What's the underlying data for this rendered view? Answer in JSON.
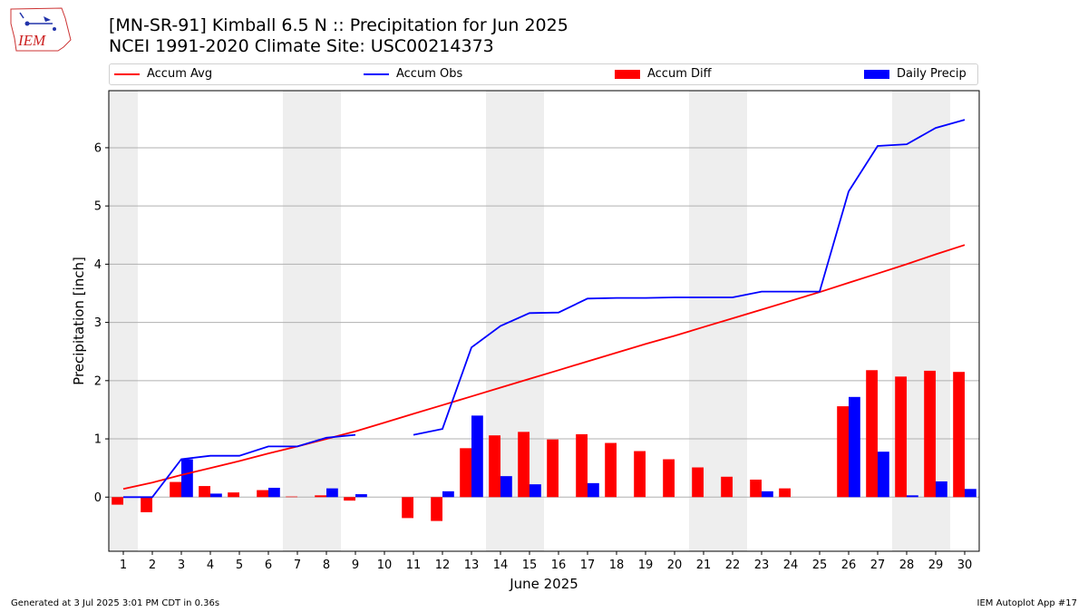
{
  "logo": {
    "text": "IEM"
  },
  "title": {
    "line1": "[MN-SR-91] Kimball 6.5 N :: Precipitation for Jun 2025",
    "line2": "NCEI 1991-2020 Climate Site: USC00214373"
  },
  "legend": {
    "accum_avg": "Accum Avg",
    "accum_obs": "Accum Obs",
    "accum_diff": "Accum Diff",
    "daily_precip": "Daily Precip"
  },
  "colors": {
    "red": "#ff0000",
    "blue": "#0000ff",
    "shade": "#eeeeee",
    "grid": "#b0b0b0"
  },
  "footer": {
    "generated": "Generated at 3 Jul 2025 3:01 PM CDT in 0.36s",
    "app": "IEM Autoplot App #17"
  },
  "chart_data": {
    "type": "bar",
    "xlabel": "June 2025",
    "ylabel": "Precipitation [inch]",
    "ylim": [
      -0.93,
      6.98
    ],
    "yticks": [
      0,
      1,
      2,
      3,
      4,
      5,
      6
    ],
    "xlim": [
      0.5,
      30.5
    ],
    "days": [
      1,
      2,
      3,
      4,
      5,
      6,
      7,
      8,
      9,
      10,
      11,
      12,
      13,
      14,
      15,
      16,
      17,
      18,
      19,
      20,
      21,
      22,
      23,
      24,
      25,
      26,
      27,
      28,
      29,
      30
    ],
    "shaded_days": [
      [
        1,
        1
      ],
      [
        7,
        8
      ],
      [
        14,
        15
      ],
      [
        21,
        22
      ],
      [
        28,
        29
      ]
    ],
    "grid": true,
    "legend_position": "top",
    "series": [
      {
        "name": "Accum Avg",
        "kind": "line",
        "color": "#ff0000",
        "values": [
          0.14,
          0.25,
          0.38,
          0.5,
          0.62,
          0.75,
          0.87,
          1.0,
          1.13,
          1.28,
          1.43,
          1.58,
          1.73,
          1.88,
          2.03,
          2.18,
          2.33,
          2.48,
          2.63,
          2.77,
          2.92,
          3.07,
          3.22,
          3.37,
          3.52,
          3.68,
          3.84,
          4.0,
          4.17,
          4.33
        ]
      },
      {
        "name": "Accum Obs",
        "kind": "line",
        "color": "#0000ff",
        "values": [
          0.0,
          0.0,
          0.65,
          0.71,
          0.71,
          0.87,
          0.87,
          1.02,
          1.07,
          null,
          1.07,
          1.17,
          2.57,
          2.94,
          3.16,
          3.17,
          3.41,
          3.42,
          3.42,
          3.43,
          3.43,
          3.43,
          3.53,
          3.53,
          3.53,
          5.25,
          6.03,
          6.06,
          6.34,
          6.48
        ]
      },
      {
        "name": "Accum Diff",
        "kind": "bar",
        "color": "#ff0000",
        "values": [
          -0.13,
          -0.26,
          0.26,
          0.19,
          0.08,
          0.12,
          0.01,
          0.03,
          -0.06,
          null,
          -0.36,
          -0.41,
          0.84,
          1.06,
          1.12,
          0.99,
          1.08,
          0.93,
          0.79,
          0.65,
          0.51,
          0.35,
          0.3,
          0.15,
          null,
          1.56,
          2.18,
          2.07,
          2.17,
          2.15
        ]
      },
      {
        "name": "Daily Precip",
        "kind": "bar",
        "color": "#0000ff",
        "values": [
          0,
          0,
          0.65,
          0.06,
          0,
          0.16,
          0,
          0.15,
          0.05,
          null,
          null,
          0.1,
          1.4,
          0.36,
          0.22,
          0,
          0.24,
          0,
          0,
          0,
          0,
          0,
          0.1,
          0,
          0,
          1.72,
          0.78,
          0.03,
          0.27,
          0.14
        ]
      }
    ]
  }
}
